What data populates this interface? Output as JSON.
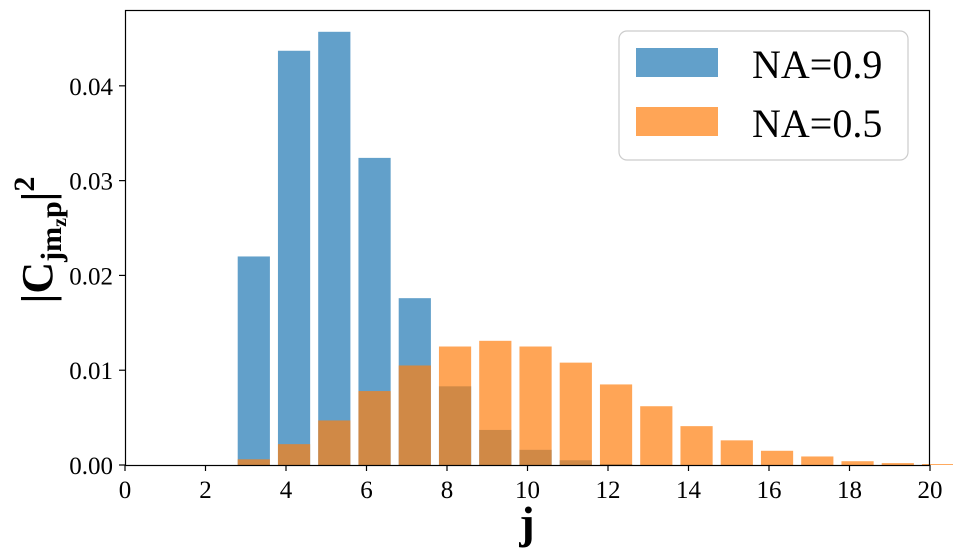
{
  "chart_data": {
    "type": "bar",
    "xlabel": "j",
    "ylabel": "|C_{jm_z p}|^2",
    "ylabel_parts": {
      "left": "|C",
      "sub": "jm",
      "subsub": "z",
      "subtail": "p",
      "bar": "|",
      "sup": "2"
    },
    "xlim": [
      0,
      20
    ],
    "ylim": [
      0,
      0.048
    ],
    "x_ticks": [
      "0",
      "2",
      "4",
      "6",
      "8",
      "10",
      "12",
      "14",
      "16",
      "18",
      "20"
    ],
    "y_ticks": [
      "0.00",
      "0.01",
      "0.02",
      "0.03",
      "0.04"
    ],
    "grid": false,
    "legend_position": "top-right",
    "x": [
      1,
      2,
      3,
      4,
      5,
      6,
      7,
      8,
      9,
      10,
      11,
      12,
      13,
      14,
      15,
      16,
      17,
      18,
      19,
      20
    ],
    "series": [
      {
        "name": "NA=0.9",
        "color": "#1f77b4",
        "values": [
          0,
          0,
          0.022,
          0.0437,
          0.0457,
          0.0324,
          0.0176,
          0.0083,
          0.0037,
          0.0016,
          0.0005,
          0.0001,
          0,
          0,
          0,
          0,
          0,
          0,
          0,
          0
        ]
      },
      {
        "name": "NA=0.5",
        "color": "#ff7f0e",
        "values": [
          0,
          0,
          0.0006,
          0.0022,
          0.0047,
          0.0078,
          0.0105,
          0.0125,
          0.0131,
          0.0125,
          0.0108,
          0.0085,
          0.0062,
          0.0041,
          0.0026,
          0.0015,
          0.0009,
          0.0004,
          0.0002,
          0.0001
        ]
      }
    ]
  }
}
